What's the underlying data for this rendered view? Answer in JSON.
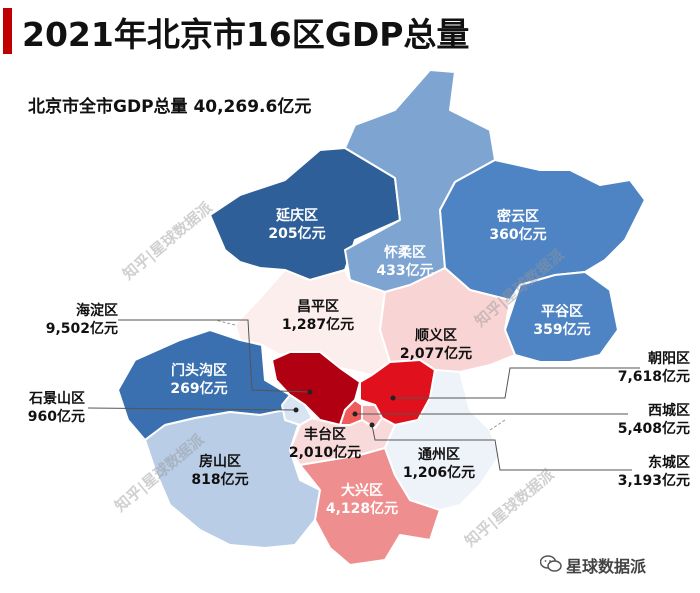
{
  "title": "2021年北京市16区GDP总量",
  "subtitle": "北京市全市GDP总量 40,269.6亿元",
  "districts": [
    {
      "id": "yanqing",
      "name": "延庆区",
      "value": "205亿元",
      "color": "#2f5f98"
    },
    {
      "id": "huairou",
      "name": "怀柔区",
      "value": "433亿元",
      "color": "#7ea4d2"
    },
    {
      "id": "miyun",
      "name": "密云区",
      "value": "360亿元",
      "color": "#4f84c4"
    },
    {
      "id": "pinggu",
      "name": "平谷区",
      "value": "359亿元",
      "color": "#4f84c4"
    },
    {
      "id": "changping",
      "name": "昌平区",
      "value": "1,287亿元",
      "color": "#fdeeee"
    },
    {
      "id": "shunyi",
      "name": "顺义区",
      "value": "2,077亿元",
      "color": "#f8d4d4"
    },
    {
      "id": "mentougou",
      "name": "门头沟区",
      "value": "269亿元",
      "color": "#3a6fb0"
    },
    {
      "id": "fangshan",
      "name": "房山区",
      "value": "818亿元",
      "color": "#b9cde6"
    },
    {
      "id": "fengtai",
      "name": "丰台区",
      "value": "2,010亿元",
      "color": "#f9dada"
    },
    {
      "id": "daxing",
      "name": "大兴区",
      "value": "4,128亿元",
      "color": "#ee8e8e"
    },
    {
      "id": "tongzhou",
      "name": "通州区",
      "value": "1,206亿元",
      "color": "#eef2f9"
    },
    {
      "id": "haidian",
      "name": "海淀区",
      "value": "9,502亿元",
      "color": "#b10011"
    },
    {
      "id": "chaoyang",
      "name": "朝阳区",
      "value": "7,618亿元",
      "color": "#e0101c"
    },
    {
      "id": "shijingshan",
      "name": "石景山区",
      "value": "960亿元",
      "color": "#d8e4f2"
    },
    {
      "id": "xicheng",
      "name": "西城区",
      "value": "5,408亿元",
      "color": "#ef5a5a"
    },
    {
      "id": "dongcheng",
      "name": "东城区",
      "value": "3,193亿元",
      "color": "#f2a8a8"
    }
  ],
  "watermarks": [
    "知乎|星球数据派",
    "知乎|星球数据派",
    "知乎|星球数据派",
    "知乎|星球数据派"
  ],
  "brand": "星球数据派",
  "brand_icon": "wechat-icon"
}
